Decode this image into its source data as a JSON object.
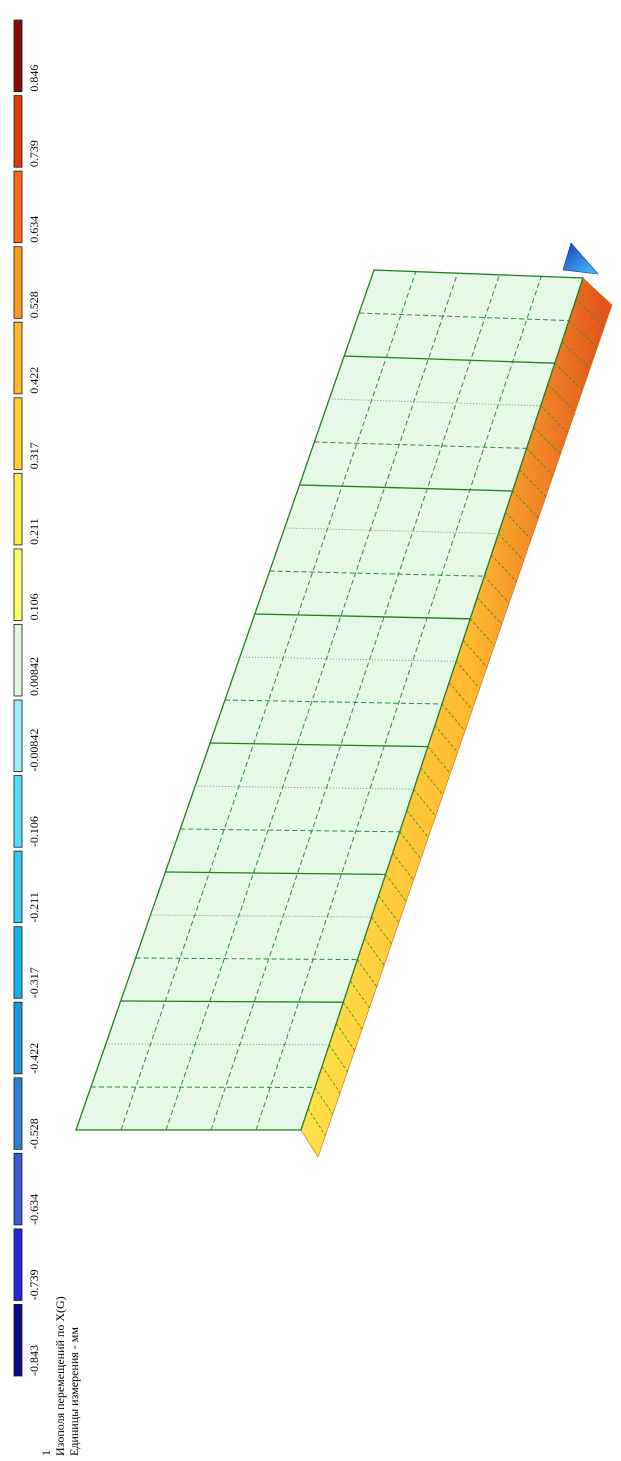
{
  "legend": {
    "values": [
      "-0.843",
      "-0.739",
      "-0.634",
      "-0.528",
      "-0.422",
      "-0.317",
      "-0.211",
      "-0.106",
      "-0.00842",
      "0.00842",
      "0.106",
      "0.211",
      "0.317",
      "0.422",
      "0.528",
      "0.634",
      "0.739",
      "0.846"
    ],
    "colors": [
      "#0a0a8c",
      "#2828d8",
      "#3c5ad6",
      "#2f7fcf",
      "#1e96dc",
      "#1aaee6",
      "#38c8f0",
      "#55dcf8",
      "#9ef0f8",
      "#e6f6e6",
      "#ffff70",
      "#ffeb50",
      "#ffd030",
      "#ffb830",
      "#ff9a20",
      "#ff6a14",
      "#e03a10",
      "#8c0a0a"
    ]
  },
  "caption": {
    "line1": "1",
    "line2": "Изополя перемещений по X(G)",
    "line3": "Единицы измерения - мм"
  },
  "model": {
    "plate_color": "#e6f8e6",
    "edge_gradient": [
      "#ff9a20",
      "#ffc830",
      "#ffe24a"
    ],
    "support_colors": [
      "#1e3cc8",
      "#2fa0e0"
    ]
  }
}
